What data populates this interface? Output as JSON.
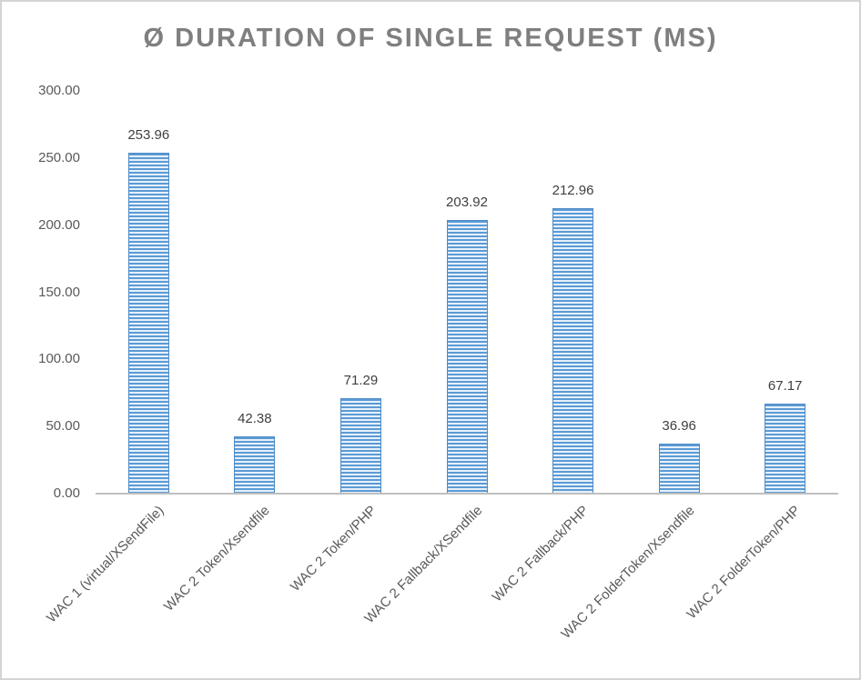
{
  "window": {
    "background_color": "#ffffff",
    "border_color": "#d4d4d4"
  },
  "chart_data": {
    "type": "bar",
    "title": "Ø DURATION OF SINGLE REQUEST (MS)",
    "categories": [
      "WAC 1 (virtual/XSendFile)",
      "WAC 2 Token/Xsendfile",
      "WAC 2 Token/PHP",
      "WAC 2 Fallback/XSendfile",
      "WAC 2 Fallback/PHP",
      "WAC 2 FolderToken/Xsendfile",
      "WAC 2 FolderToken/PHP"
    ],
    "values": [
      253.96,
      42.38,
      71.29,
      203.92,
      212.96,
      36.96,
      67.17
    ],
    "value_labels": [
      "253.96",
      "42.38",
      "71.29",
      "203.92",
      "212.96",
      "36.96",
      "67.17"
    ],
    "y_ticks": [
      "300.00",
      "250.00",
      "200.00",
      "150.00",
      "100.00",
      "50.00",
      "0.00"
    ],
    "ylim": [
      0,
      300
    ],
    "xlabel": "",
    "ylabel": "",
    "grid": false,
    "legend_position": "none",
    "x_label_rotation_deg": -45,
    "colors": {
      "title": "#7f7f7f",
      "tick_labels": "#595959",
      "value_labels": "#3f3f3f",
      "axis_line": "#bfbfbf",
      "bar_stripe": "#5b9bd5",
      "bar_stripe_background": "#e7f0fa",
      "bar_border": "#4e8bc8"
    }
  }
}
